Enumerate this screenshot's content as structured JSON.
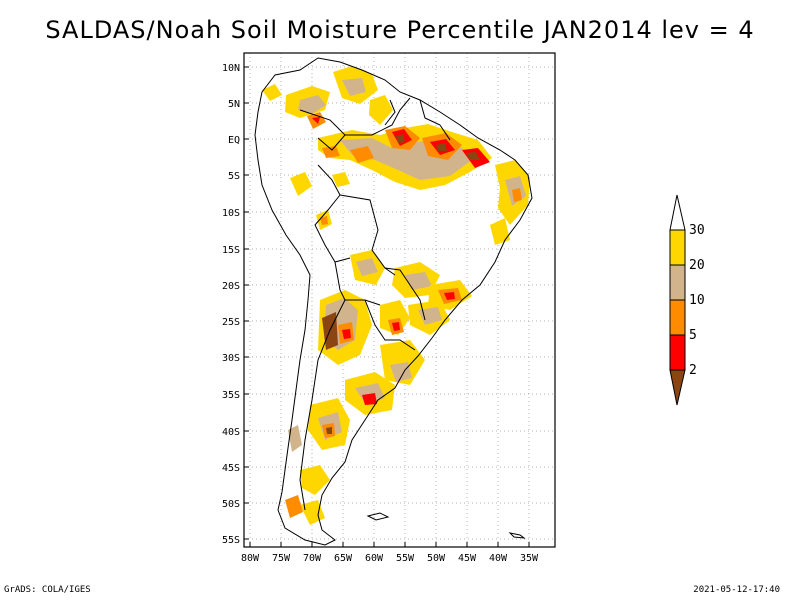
{
  "title": "SALDAS/Noah Soil Moisture Percentile JAN2014 lev = 4",
  "map": {
    "lon_range": [
      -81,
      -31
    ],
    "lat_range": [
      -56,
      11
    ],
    "lat_ticks": [
      "10N",
      "5N",
      "EQ",
      "5S",
      "10S",
      "15S",
      "20S",
      "25S",
      "30S",
      "35S",
      "40S",
      "45S",
      "50S",
      "55S"
    ],
    "lon_ticks": [
      "80W",
      "75W",
      "70W",
      "65W",
      "60W",
      "55W",
      "50W",
      "45W",
      "40W",
      "35W"
    ],
    "grid": true,
    "gridline_style": "dotted"
  },
  "legend": {
    "type": "colorbar",
    "placement": "right",
    "bins": [
      {
        "color": "#8B4513",
        "range": "< 2"
      },
      {
        "color": "#FF0000",
        "range": "2-5"
      },
      {
        "color": "#FF8C00",
        "range": "5-10"
      },
      {
        "color": "#D2B48C",
        "range": "10-20"
      },
      {
        "color": "#FFD700",
        "range": "20-30"
      },
      {
        "color": "#FFFFFF",
        "range": "> 30"
      }
    ],
    "labels": [
      "2",
      "5",
      "10",
      "20",
      "30"
    ]
  },
  "footer": {
    "left": "GrADS: COLA/IGES",
    "right": "2021-05-12-17:40"
  }
}
